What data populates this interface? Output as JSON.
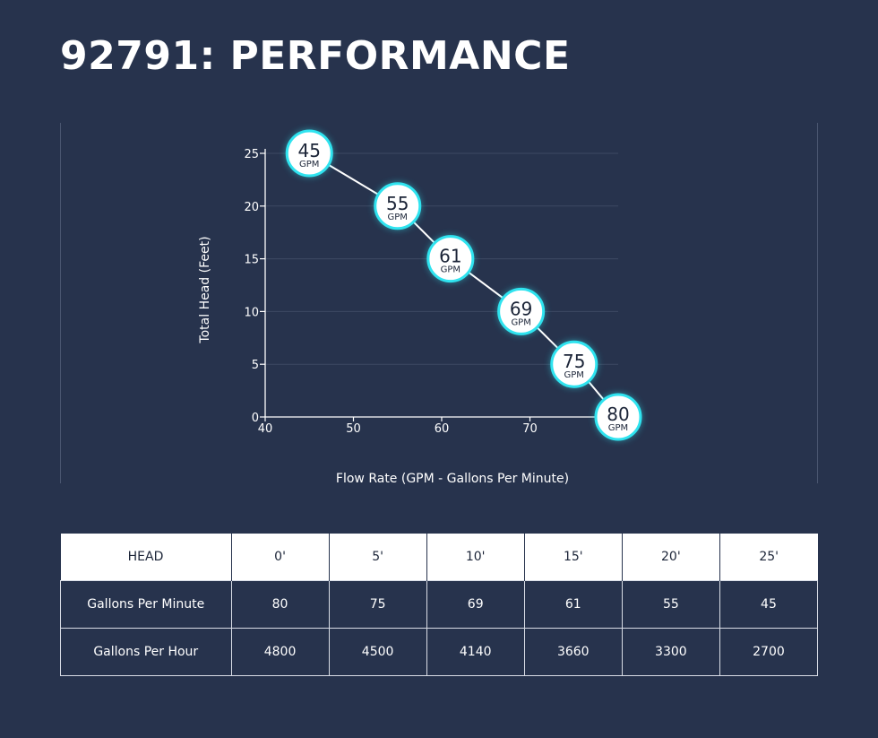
{
  "page": {
    "title": "92791: PERFORMANCE"
  },
  "chart_data": {
    "type": "line",
    "xlabel": "Flow Rate (GPM - Gallons Per Minute)",
    "ylabel": "Total Head (Feet)",
    "xlim": [
      40,
      80
    ],
    "ylim": [
      0,
      25
    ],
    "x_ticks": [
      40,
      50,
      60,
      70
    ],
    "y_ticks": [
      0,
      5,
      10,
      15,
      20,
      25
    ],
    "grid": "horizontal",
    "points": [
      {
        "x": 45,
        "y": 25,
        "label": "45",
        "unit": "GPM"
      },
      {
        "x": 55,
        "y": 20,
        "label": "55",
        "unit": "GPM"
      },
      {
        "x": 61,
        "y": 15,
        "label": "61",
        "unit": "GPM"
      },
      {
        "x": 69,
        "y": 10,
        "label": "69",
        "unit": "GPM"
      },
      {
        "x": 75,
        "y": 5,
        "label": "75",
        "unit": "GPM"
      },
      {
        "x": 80,
        "y": 0,
        "label": "80",
        "unit": "GPM"
      }
    ],
    "colors": {
      "line": "#ffffff",
      "marker_fill": "#ffffff",
      "marker_ring": "#2fe3ef",
      "grid": "#3d4963",
      "axis": "#ffffff"
    }
  },
  "table": {
    "headers": [
      "HEAD",
      "0'",
      "5'",
      "10'",
      "15'",
      "20'",
      "25'"
    ],
    "rows": [
      {
        "label": "Gallons Per Minute",
        "values": [
          "80",
          "75",
          "69",
          "61",
          "55",
          "45"
        ]
      },
      {
        "label": "Gallons Per Hour",
        "values": [
          "4800",
          "4500",
          "4140",
          "3660",
          "3300",
          "2700"
        ]
      }
    ]
  }
}
